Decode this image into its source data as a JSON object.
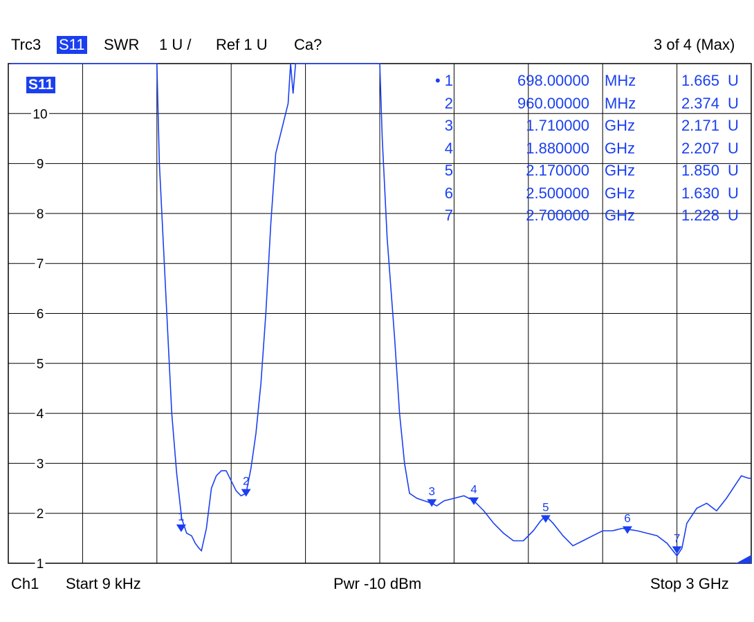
{
  "header": {
    "trace": "Trc3",
    "param": "S11",
    "format": "SWR",
    "scale": "1 U /",
    "ref": "Ref 1 U",
    "cal": "Ca?",
    "page": "3 of 4 (Max)"
  },
  "footer": {
    "channel": "Ch1",
    "start": "Start  9 kHz",
    "power": "Pwr  -10 dBm",
    "stop": "Stop  3 GHz"
  },
  "trace_label": "S11",
  "colors": {
    "trace": "#1a3ff0",
    "grid": "#000000",
    "highlight": "#1a3ff0"
  },
  "marker_table": [
    {
      "num": "• 1",
      "freq": "698.00000",
      "unit": "MHz",
      "value": "1.665",
      "vunit": "U"
    },
    {
      "num": "2",
      "freq": "960.00000",
      "unit": "MHz",
      "value": "2.374",
      "vunit": "U"
    },
    {
      "num": "3",
      "freq": "1.710000",
      "unit": "GHz",
      "value": "2.171",
      "vunit": "U"
    },
    {
      "num": "4",
      "freq": "1.880000",
      "unit": "GHz",
      "value": "2.207",
      "vunit": "U"
    },
    {
      "num": "5",
      "freq": "2.170000",
      "unit": "GHz",
      "value": "1.850",
      "vunit": "U"
    },
    {
      "num": "6",
      "freq": "2.500000",
      "unit": "GHz",
      "value": "1.630",
      "vunit": "U"
    },
    {
      "num": "7",
      "freq": "2.700000",
      "unit": "GHz",
      "value": "1.228",
      "vunit": "U"
    }
  ],
  "chart_data": {
    "type": "line",
    "title": "",
    "xlabel": "",
    "ylabel": "",
    "xlim": [
      0,
      3000
    ],
    "ylim": [
      1,
      11
    ],
    "y_ticks": [
      1,
      2,
      3,
      4,
      5,
      6,
      7,
      8,
      9,
      10
    ],
    "grid": true,
    "series": [
      {
        "values_x_mhz": [
          9,
          300,
          600,
          610,
          640,
          660,
          680,
          700,
          720,
          740,
          755,
          770,
          780,
          800,
          820,
          840,
          860,
          880,
          900,
          920,
          940,
          960,
          980,
          1000,
          1020,
          1040,
          1060,
          1080,
          1100,
          1130,
          1140,
          1150,
          1160,
          1170,
          1500,
          1510,
          1530,
          1560,
          1580,
          1600,
          1620,
          1650,
          1680,
          1710,
          1730,
          1760,
          1800,
          1840,
          1880,
          1920,
          1960,
          2000,
          2040,
          2080,
          2120,
          2150,
          2170,
          2200,
          2240,
          2280,
          2320,
          2360,
          2400,
          2440,
          2480,
          2500,
          2540,
          2580,
          2620,
          2660,
          2700,
          2720,
          2740,
          2780,
          2820,
          2860,
          2900,
          2940,
          2960,
          2990,
          3000
        ],
        "values_y": [
          11,
          11,
          11,
          9.0,
          6.0,
          4.0,
          2.8,
          1.9,
          1.6,
          1.55,
          1.4,
          1.3,
          1.25,
          1.7,
          2.5,
          2.75,
          2.85,
          2.85,
          2.65,
          2.45,
          2.35,
          2.4,
          2.9,
          3.6,
          4.6,
          6.0,
          7.8,
          9.2,
          9.6,
          10.2,
          11,
          10.4,
          11,
          11,
          11,
          9.5,
          7.5,
          5.5,
          4.0,
          3.0,
          2.4,
          2.3,
          2.25,
          2.2,
          2.15,
          2.25,
          2.3,
          2.35,
          2.25,
          2.05,
          1.8,
          1.6,
          1.45,
          1.45,
          1.65,
          1.85,
          1.95,
          1.8,
          1.55,
          1.35,
          1.45,
          1.55,
          1.65,
          1.65,
          1.7,
          1.68,
          1.65,
          1.6,
          1.55,
          1.4,
          1.15,
          1.3,
          1.8,
          2.1,
          2.2,
          2.05,
          2.3,
          2.6,
          2.75,
          2.7,
          2.7
        ],
        "color": "#1a3ff0"
      }
    ],
    "markers": [
      {
        "label": "1",
        "x_mhz": 698,
        "y": 1.665
      },
      {
        "label": "2",
        "x_mhz": 960,
        "y": 2.374
      },
      {
        "label": "3",
        "x_mhz": 1710,
        "y": 2.171
      },
      {
        "label": "4",
        "x_mhz": 1880,
        "y": 2.207
      },
      {
        "label": "5",
        "x_mhz": 2170,
        "y": 1.85
      },
      {
        "label": "6",
        "x_mhz": 2500,
        "y": 1.63
      },
      {
        "label": "7",
        "x_mhz": 2700,
        "y": 1.228
      }
    ]
  }
}
